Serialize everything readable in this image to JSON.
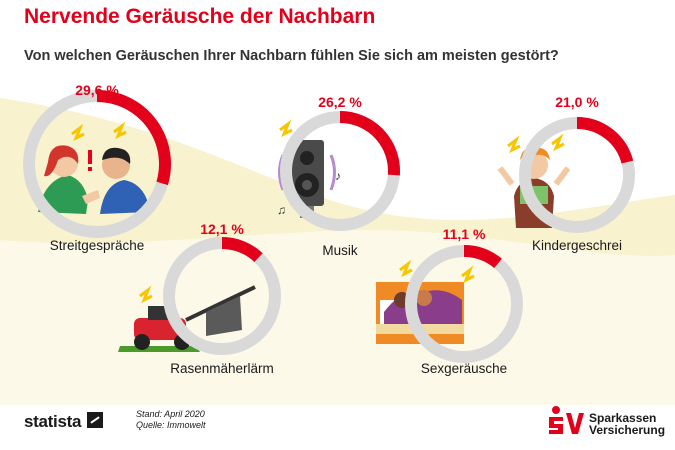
{
  "header": {
    "title": "Nervende Geräusche der Nachbarn",
    "subtitle": "Von welchen Geräuschen Ihrer Nachbarn fühlen Sie sich am meisten gestört?"
  },
  "chart_data": {
    "type": "donut",
    "unit": "%",
    "items": [
      {
        "label": "Streitgespräche",
        "value": 29.6,
        "value_label": "29,6 %",
        "icon": "arguing-couple-icon"
      },
      {
        "label": "Musik",
        "value": 26.2,
        "value_label": "26,2 %",
        "icon": "loudspeaker-icon"
      },
      {
        "label": "Kindergeschrei",
        "value": 21.0,
        "value_label": "21,0 %",
        "icon": "screaming-child-icon"
      },
      {
        "label": "Rasenmäherlärm",
        "value": 12.1,
        "value_label": "12,1 %",
        "icon": "lawn-mower-icon"
      },
      {
        "label": "Sexgeräusche",
        "value": 11.1,
        "value_label": "11,1 %",
        "icon": "bed-couple-icon"
      }
    ],
    "colors": {
      "value": "#e3001b",
      "remainder": "#d9d9d9"
    }
  },
  "footer": {
    "brand": "statista",
    "source_date": "Stand: April 2020",
    "source": "Quelle: Immowelt",
    "logo_line1": "Sparkassen",
    "logo_line2": "Versicherung"
  }
}
